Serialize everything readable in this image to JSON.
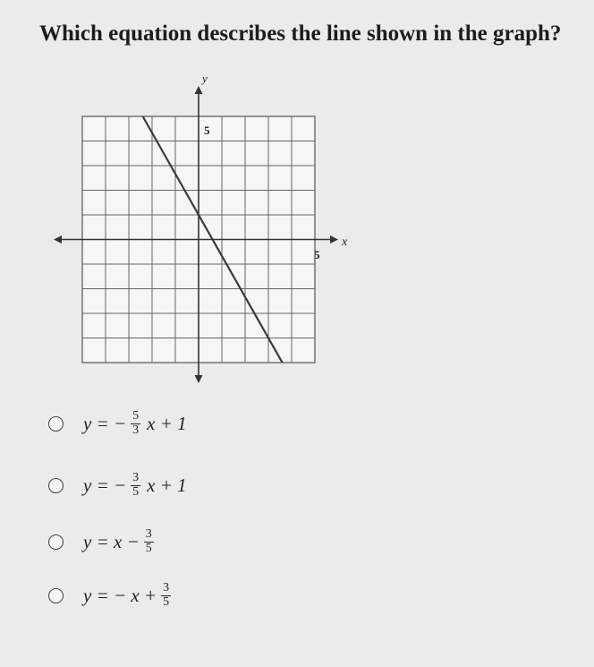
{
  "question": "Which equation describes the line shown in the graph?",
  "graph": {
    "y_axis_label": "y",
    "x_axis_label": "x",
    "y_tick_label": "5",
    "x_tick_label": "5"
  },
  "options": [
    {
      "prefix": "y = −",
      "num": "5",
      "den": "3",
      "suffix": "x + 1"
    },
    {
      "prefix": "y = −",
      "num": "3",
      "den": "5",
      "suffix": "x + 1"
    },
    {
      "prefix": "y = x −",
      "num": "3",
      "den": "5"
    },
    {
      "prefix": "y = − x +",
      "num": "3",
      "den": "5"
    }
  ]
}
